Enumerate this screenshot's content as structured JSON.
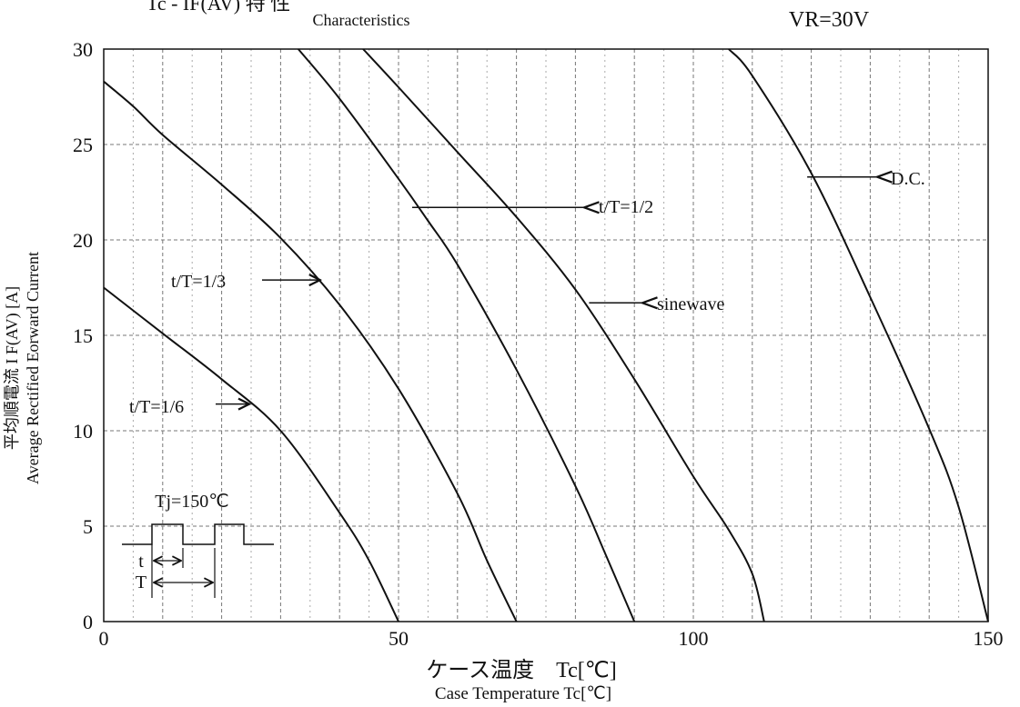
{
  "chart_data": {
    "type": "line",
    "title_partial": "Tc - IF(AV) 特 性",
    "subtitle": "Characteristics",
    "condition": "VR=30V",
    "xlabel_jp": "ケース温度　Tc[℃]",
    "xlabel_en": "Case Temperature Tc[℃]",
    "ylabel_jp": "平均順電流 I F(AV) [A]",
    "ylabel_en": "Average Rectified Eorward Current",
    "xlim": [
      0,
      150
    ],
    "ylim": [
      0,
      30
    ],
    "x_ticks": [
      0,
      50,
      100,
      150
    ],
    "y_ticks": [
      0,
      5,
      10,
      15,
      20,
      25,
      30
    ],
    "grid": true,
    "series": [
      {
        "name": "t/T=1/6",
        "x": [
          0,
          10,
          20,
          30,
          40,
          45,
          50
        ],
        "y": [
          17.5,
          15.1,
          12.7,
          10.0,
          5.7,
          3.2,
          0
        ]
      },
      {
        "name": "t/T=1/3",
        "x": [
          0,
          5,
          10,
          20,
          30,
          40,
          50,
          60,
          65,
          70
        ],
        "y": [
          28.3,
          27.0,
          25.5,
          22.9,
          20.1,
          16.6,
          12.2,
          6.7,
          3.2,
          0
        ]
      },
      {
        "name": "t/T=1/2",
        "x": [
          33,
          40,
          50,
          55,
          60,
          70,
          80,
          85,
          90
        ],
        "y": [
          30,
          27.4,
          23.2,
          21.0,
          18.7,
          13.2,
          7.1,
          3.6,
          0
        ]
      },
      {
        "name": "sinewave",
        "x": [
          44,
          50,
          60,
          70,
          80,
          90,
          100,
          106,
          110,
          112
        ],
        "y": [
          30,
          28.0,
          24.6,
          21.2,
          17.4,
          12.7,
          7.6,
          4.8,
          2.5,
          0
        ]
      },
      {
        "name": "D.C.",
        "x": [
          106,
          110,
          120,
          130,
          140,
          145,
          150
        ],
        "y": [
          30,
          28.6,
          23.5,
          17.0,
          10.1,
          6.0,
          0
        ]
      }
    ],
    "annotations": [
      {
        "label": "t/T=1/6",
        "arrow_to": [
          25,
          11.4
        ]
      },
      {
        "label": "t/T=1/3",
        "arrow_to": [
          37,
          17.9
        ]
      },
      {
        "label": "t/T=1/2",
        "arrow_to": [
          52,
          21.7
        ]
      },
      {
        "label": "sinewave",
        "arrow_to": [
          82,
          16.7
        ]
      },
      {
        "label": "D.C.",
        "arrow_to": [
          119,
          23.3
        ]
      }
    ],
    "inset": {
      "label": "Tj=150℃",
      "t_label": "t",
      "T_label": "T"
    }
  }
}
